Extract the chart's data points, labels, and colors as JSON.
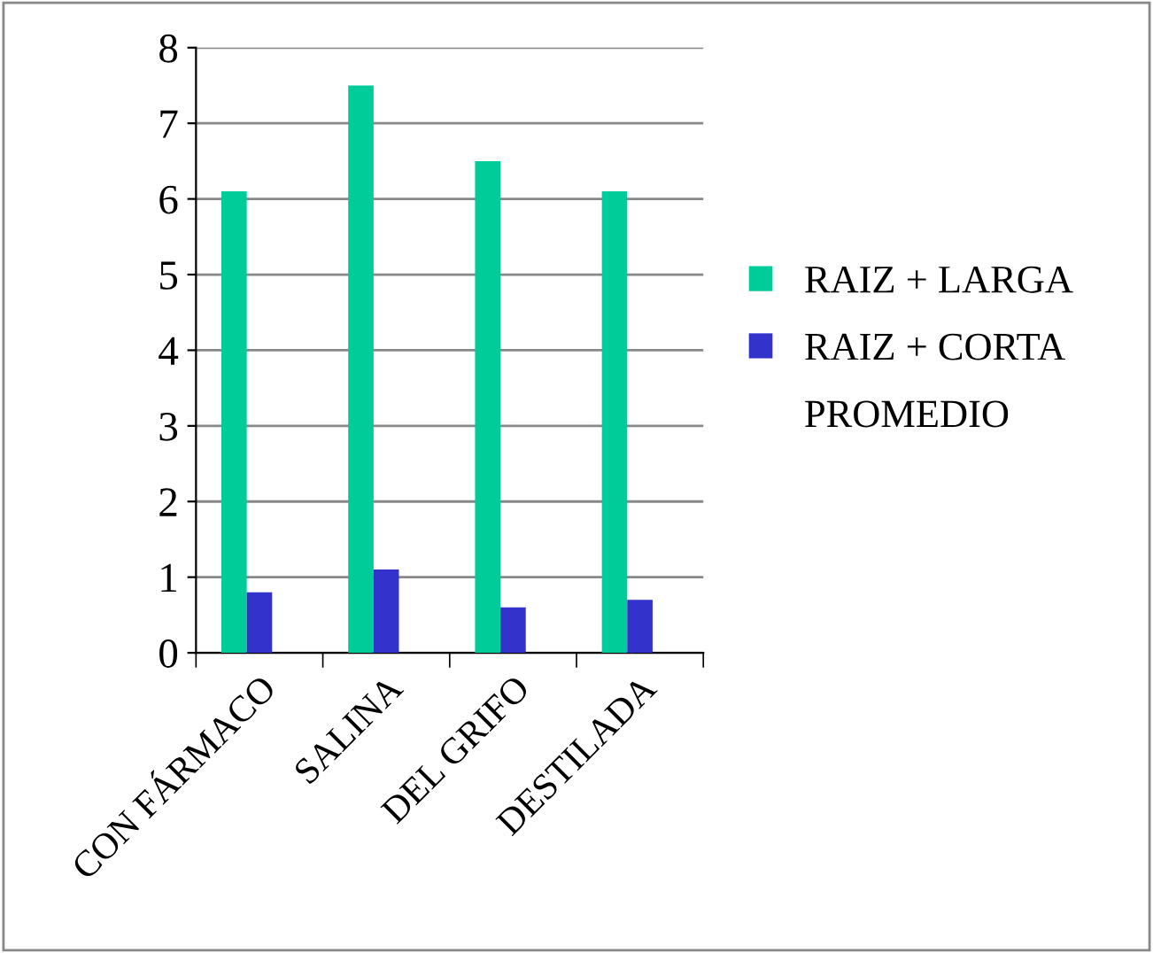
{
  "chart_data": {
    "type": "bar",
    "categories": [
      "CON FÁRMACO",
      "SALINA",
      "DEL GRIFO",
      "DESTILADA"
    ],
    "series": [
      {
        "name": "RAIZ + LARGA",
        "color": "#00cc99",
        "values": [
          6.1,
          7.5,
          6.5,
          6.1
        ]
      },
      {
        "name": "RAIZ + CORTA",
        "color": "#3333cc",
        "values": [
          0.8,
          1.1,
          0.6,
          0.7
        ]
      },
      {
        "name": "PROMEDIO",
        "values": [
          null,
          null,
          null,
          null
        ]
      }
    ],
    "ylim": [
      0,
      8
    ],
    "yticks": [
      0,
      1,
      2,
      3,
      4,
      5,
      6,
      7,
      8
    ],
    "grid": "y",
    "legend": "right"
  }
}
